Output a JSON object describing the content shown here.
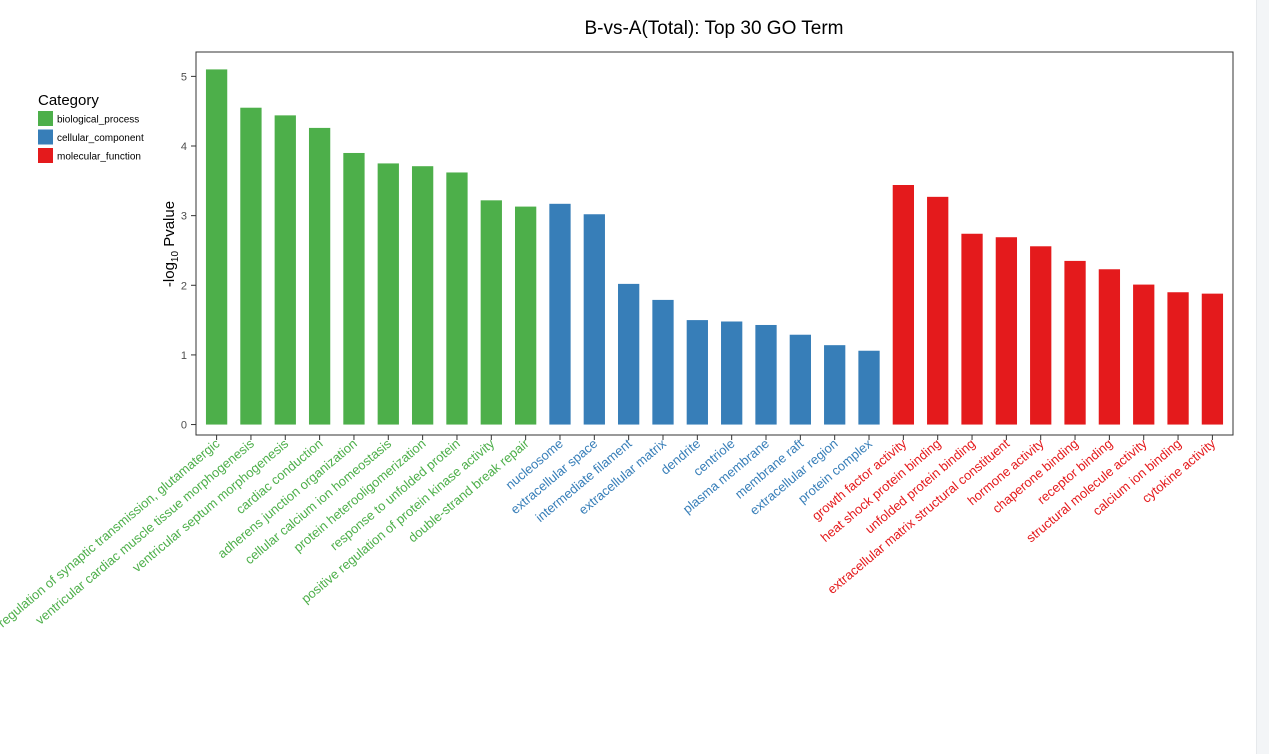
{
  "chart_data": {
    "type": "bar",
    "title": "B-vs-A(Total): Top 30 GO Term",
    "ylabel_prefix": "-log",
    "ylabel_sub": "10",
    "ylabel_suffix": " Pvalue",
    "xlabel": "",
    "ylim": [
      -0.15,
      5.35
    ],
    "yticks": [
      "0",
      "1",
      "2",
      "3",
      "4",
      "5"
    ],
    "grid": false,
    "legend": {
      "title": "Category",
      "placement": "left",
      "items": [
        {
          "label": "biological_process",
          "color": "#4daf4a"
        },
        {
          "label": "cellular_component",
          "color": "#377eb8"
        },
        {
          "label": "molecular_function",
          "color": "#e41a1c"
        }
      ]
    },
    "categories": [
      "regulation of synaptic transmission, glutamatergic",
      "ventricular cardiac muscle tissue morphogenesis",
      "ventricular septum morphogenesis",
      "cardiac conduction",
      "adherens junction organization",
      "cellular calcium ion homeostasis",
      "protein heterooligomerization",
      "response to unfolded protein",
      "positive regulation of protein kinase activity",
      "double-strand break repair",
      "nucleosome",
      "extracellular space",
      "intermediate filament",
      "extracellular matrix",
      "dendrite",
      "centriole",
      "plasma membrane",
      "membrane raft",
      "extracellular region",
      "protein complex",
      "growth factor activity",
      "heat shock protein binding",
      "unfolded protein binding",
      "extracellular matrix structural constituent",
      "hormone activity",
      "chaperone binding",
      "receptor binding",
      "structural molecule activity",
      "calcium ion binding",
      "cytokine activity"
    ],
    "values": [
      5.1,
      4.55,
      4.44,
      4.26,
      3.9,
      3.75,
      3.71,
      3.62,
      3.22,
      3.13,
      3.17,
      3.02,
      2.02,
      1.79,
      1.5,
      1.48,
      1.43,
      1.29,
      1.14,
      1.06,
      3.44,
      3.27,
      2.74,
      2.69,
      2.56,
      2.35,
      2.23,
      2.01,
      1.9,
      1.88
    ],
    "groups": [
      "biological_process",
      "biological_process",
      "biological_process",
      "biological_process",
      "biological_process",
      "biological_process",
      "biological_process",
      "biological_process",
      "biological_process",
      "biological_process",
      "cellular_component",
      "cellular_component",
      "cellular_component",
      "cellular_component",
      "cellular_component",
      "cellular_component",
      "cellular_component",
      "cellular_component",
      "cellular_component",
      "cellular_component",
      "molecular_function",
      "molecular_function",
      "molecular_function",
      "molecular_function",
      "molecular_function",
      "molecular_function",
      "molecular_function",
      "molecular_function",
      "molecular_function",
      "molecular_function"
    ]
  }
}
